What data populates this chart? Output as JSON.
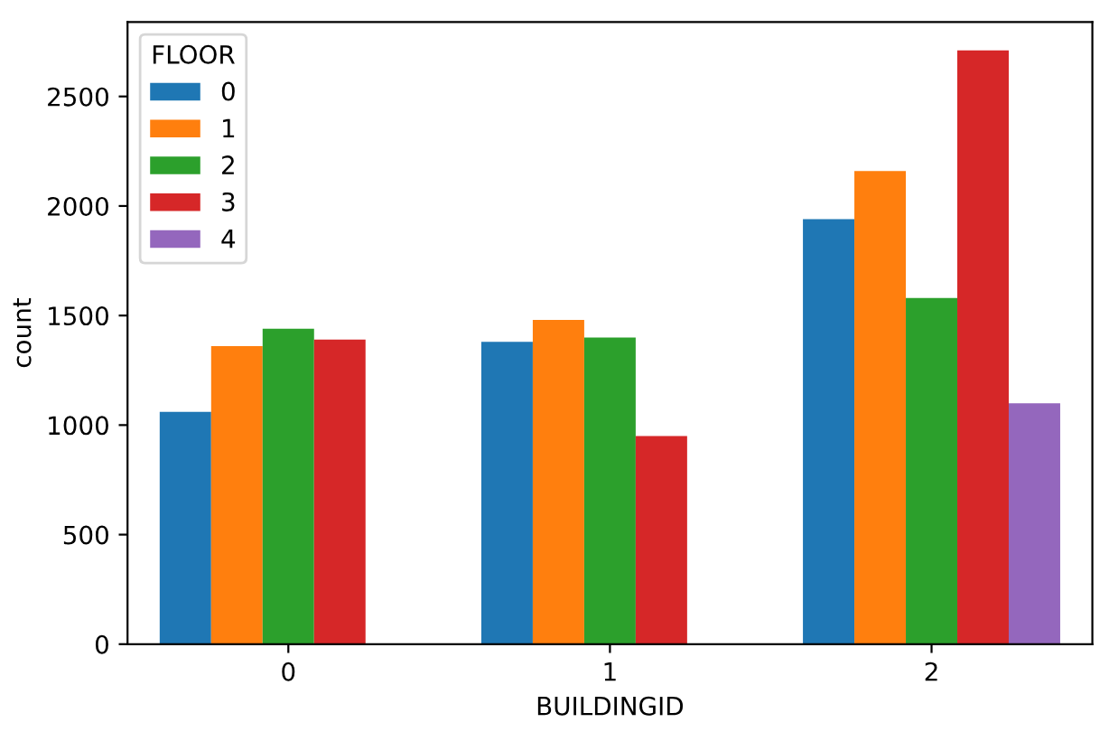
{
  "chart_data": {
    "type": "bar",
    "xlabel": "BUILDINGID",
    "ylabel": "count",
    "legend_title": "FLOOR",
    "legend": "top left",
    "grid": false,
    "categories": [
      "0",
      "1",
      "2"
    ],
    "ylim": [
      0,
      2840
    ],
    "yticks": [
      0,
      500,
      1000,
      1500,
      2000,
      2500
    ],
    "series": [
      {
        "name": "0",
        "color": "#1f77b4",
        "values": [
          1060,
          1380,
          1940
        ]
      },
      {
        "name": "1",
        "color": "#ff7f0e",
        "values": [
          1360,
          1480,
          2160
        ]
      },
      {
        "name": "2",
        "color": "#2ca02c",
        "values": [
          1440,
          1400,
          1580
        ]
      },
      {
        "name": "3",
        "color": "#d62728",
        "values": [
          1390,
          950,
          2710
        ]
      },
      {
        "name": "4",
        "color": "#9467bd",
        "values": [
          null,
          null,
          1100
        ]
      }
    ]
  }
}
